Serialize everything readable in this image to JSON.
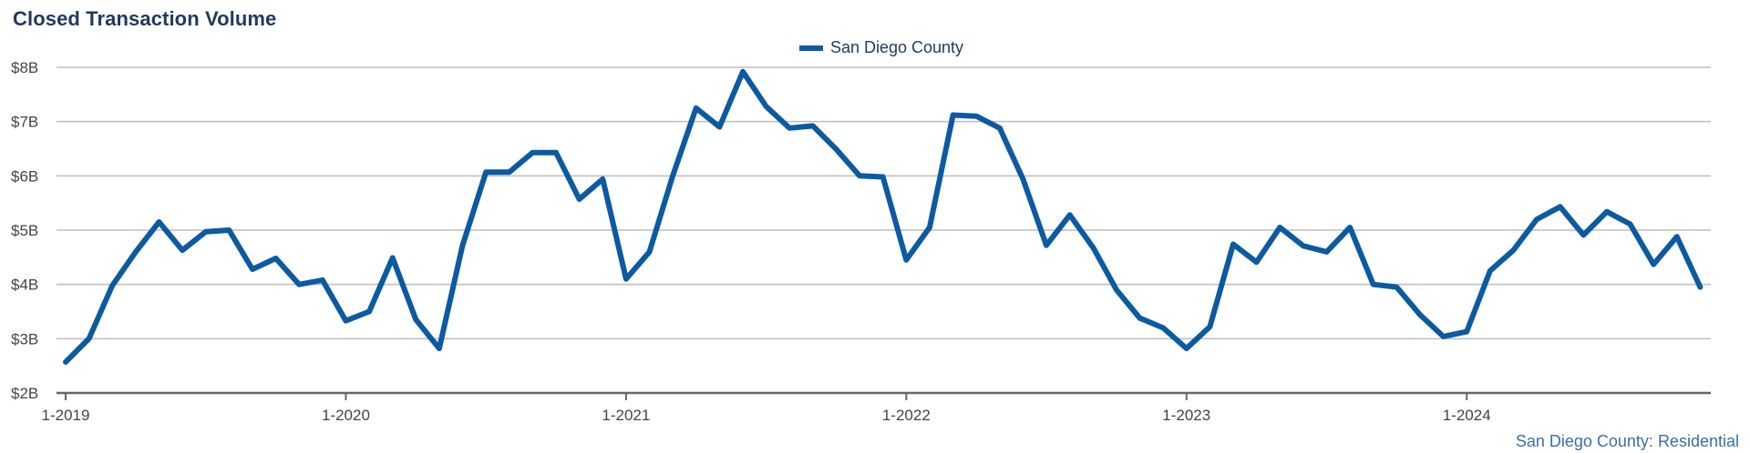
{
  "chart_data": {
    "type": "line",
    "title": "Closed Transaction Volume",
    "footer": "San Diego County: Residential",
    "legend_position": "top-center",
    "grid": true,
    "ylim": [
      2,
      8
    ],
    "y_ticks": [
      {
        "value": 2,
        "label": "$2B"
      },
      {
        "value": 3,
        "label": "$3B"
      },
      {
        "value": 4,
        "label": "$4B"
      },
      {
        "value": 5,
        "label": "$5B"
      },
      {
        "value": 6,
        "label": "$6B"
      },
      {
        "value": 7,
        "label": "$7B"
      },
      {
        "value": 8,
        "label": "$8B"
      }
    ],
    "x_ticks": [
      {
        "index": 0,
        "label": "1-2019"
      },
      {
        "index": 12,
        "label": "1-2020"
      },
      {
        "index": 24,
        "label": "1-2021"
      },
      {
        "index": 36,
        "label": "1-2022"
      },
      {
        "index": 48,
        "label": "1-2023"
      },
      {
        "index": 60,
        "label": "1-2024"
      }
    ],
    "series": [
      {
        "name": "San Diego County",
        "color": "#0b5aa2",
        "values": [
          2.57,
          3.0,
          3.98,
          4.6,
          5.15,
          4.63,
          4.97,
          5.0,
          4.28,
          4.48,
          4.0,
          4.08,
          3.33,
          3.5,
          4.49,
          3.35,
          2.82,
          4.72,
          6.07,
          6.07,
          6.43,
          6.43,
          5.57,
          5.94,
          4.1,
          4.6,
          6.0,
          7.25,
          6.9,
          7.92,
          7.28,
          6.88,
          6.92,
          6.49,
          6.0,
          5.98,
          4.45,
          5.05,
          7.12,
          7.1,
          6.88,
          5.94,
          4.72,
          5.28,
          4.68,
          3.9,
          3.38,
          3.2,
          2.82,
          3.22,
          4.74,
          4.41,
          5.05,
          4.71,
          4.6,
          5.05,
          4.0,
          3.95,
          3.44,
          3.04,
          3.13,
          4.25,
          4.63,
          5.2,
          5.43,
          4.91,
          5.34,
          5.11,
          4.37,
          4.88,
          3.95
        ]
      }
    ]
  }
}
